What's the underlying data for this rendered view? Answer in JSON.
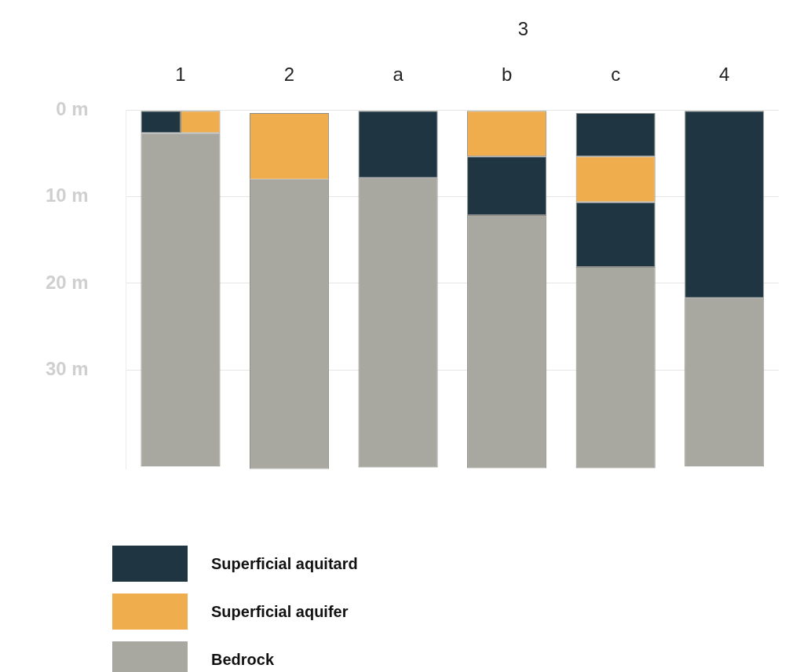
{
  "chart_data": {
    "type": "bar",
    "categories": [
      "1",
      "2",
      "a",
      "b",
      "c",
      "4"
    ],
    "series": [
      {
        "name": "Superficial aquitard",
        "color": "#1f3542",
        "base": [
          0,
          null,
          0,
          5.3,
          0.3,
          0
        ],
        "values": [
          2.6,
          null,
          7.8,
          6.8,
          5.0,
          21.7
        ]
      },
      {
        "name": "Superficial aquifer",
        "color": "#f0ad4e",
        "base": [
          0,
          0.3,
          null,
          0,
          5.3,
          null
        ],
        "values": [
          2.6,
          7.7,
          null,
          5.3,
          5.3,
          null
        ]
      },
      {
        "color": "#1f3542",
        "base": [
          null,
          null,
          null,
          null,
          10.6,
          null
        ],
        "values": [
          null,
          null,
          null,
          null,
          7.5,
          null
        ]
      },
      {
        "name": "Bedrock",
        "color": "#a8a8a1",
        "base": [
          2.6,
          8.0,
          7.8,
          12.1,
          18.1,
          21.7
        ],
        "values": [
          38.6,
          33.5,
          33.5,
          29.3,
          23.3,
          19.5
        ]
      }
    ],
    "ylim": [
      41.5,
      0
    ],
    "yticks": [
      {
        "value": 0,
        "label": "0 m"
      },
      {
        "value": 10,
        "label": "10 m"
      },
      {
        "value": 20,
        "label": "20 m"
      },
      {
        "value": 30,
        "label": "30 m"
      }
    ],
    "grid": "y",
    "legend": "bottom left",
    "annotations": [
      "3"
    ]
  }
}
